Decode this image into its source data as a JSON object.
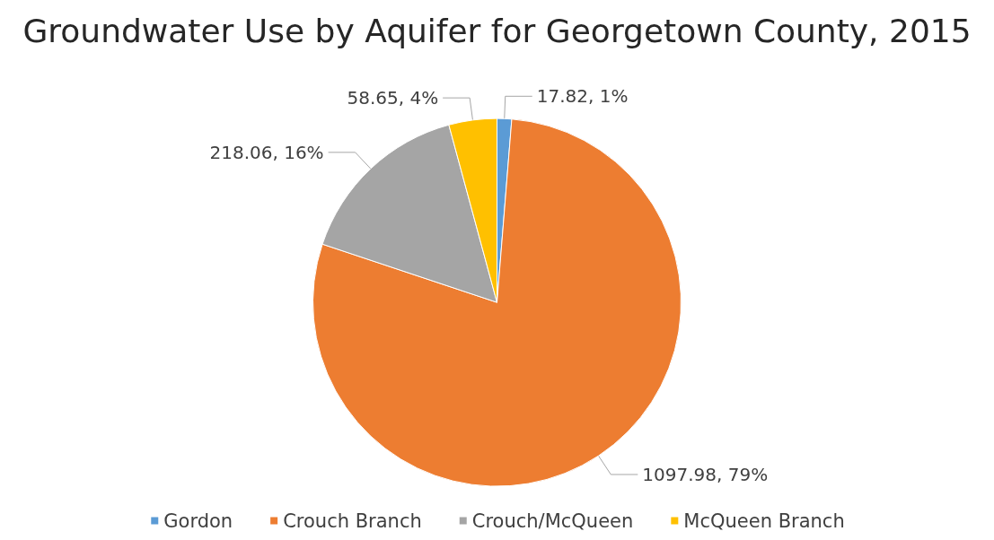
{
  "chart_data": {
    "type": "pie",
    "title": "Groundwater Use by Aquifer for Georgetown County, 2015",
    "categories": [
      "Gordon",
      "Crouch Branch",
      "Crouch/McQueen",
      "McQueen Branch"
    ],
    "values": [
      17.82,
      1097.98,
      218.06,
      58.65
    ],
    "colors": [
      "#5b9bd5",
      "#ed7d31",
      "#a5a5a5",
      "#ffc000"
    ],
    "value_labels": [
      "17.82, 1%",
      "1097.98, 79%",
      "218.06, 16%",
      "58.65, 4%"
    ],
    "legend": "bottom"
  }
}
